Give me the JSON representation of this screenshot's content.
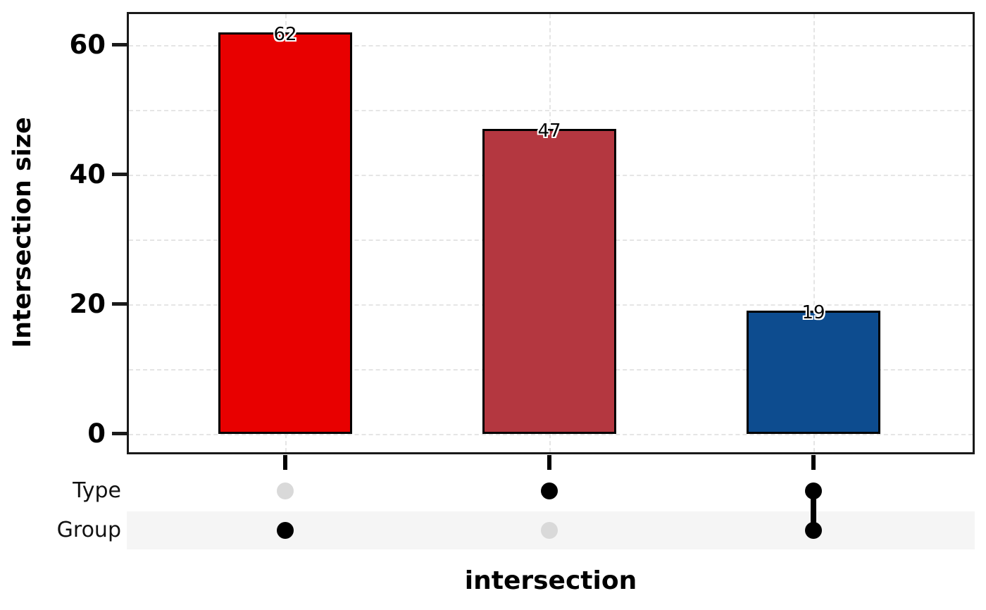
{
  "chart_data": {
    "type": "bar",
    "variant": "upset-plot",
    "title": "",
    "xlabel": "intersection",
    "ylabel": "Intersection size",
    "categories": [
      "Group only",
      "Type only",
      "Type & Group"
    ],
    "values": [
      62,
      47,
      19
    ],
    "bar_labels": [
      "62",
      "47",
      "19"
    ],
    "bar_colors": [
      "#e80000",
      "#b43740",
      "#0d4c8f"
    ],
    "ytick_values": [
      0,
      20,
      40,
      60
    ],
    "ytick_labels": [
      "0",
      "20",
      "40",
      "60"
    ],
    "gridline_values": [
      0,
      10,
      20,
      30,
      40,
      50,
      60
    ],
    "ylim": [
      -3.2,
      65.1
    ],
    "grid": "dashed horizontal every 10 units plus vertical at each category",
    "legend": "none",
    "matrix": {
      "rows": [
        "Type",
        "Group"
      ],
      "membership": [
        {
          "Type": false,
          "Group": true
        },
        {
          "Type": true,
          "Group": false
        },
        {
          "Type": true,
          "Group": true
        }
      ]
    }
  },
  "style": {
    "bar_edge_color": "#000000",
    "frame_color": "#1a1a1a",
    "grid_color": "#e5e5e5",
    "dot_present_color": "#000000",
    "dot_absent_color": "#d9d9d9",
    "stripe_color": "#f5f5f5",
    "text_color": "#000000",
    "value_label_halo": "#ffffff"
  }
}
